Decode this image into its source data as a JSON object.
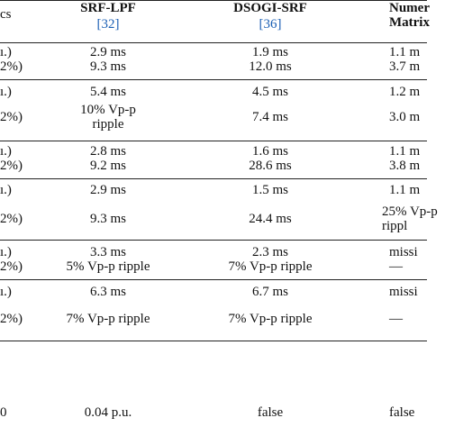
{
  "header": {
    "label": "cs",
    "columns": [
      {
        "title": "SRF-LPF",
        "ref": "[32]"
      },
      {
        "title": "DSOGI-SRF",
        "ref": "[36]"
      },
      {
        "title": "Numer",
        "subtitle": "Matrix"
      }
    ]
  },
  "table": {
    "rows": [
      [
        "ı.)",
        "2.9 ms",
        "1.9 ms",
        "1.1 m"
      ],
      [
        "2%)",
        "9.3 ms",
        "12.0 ms",
        "3.7 m"
      ],
      [
        "ı.)",
        "5.4 ms",
        "4.5 ms",
        "1.2 m"
      ],
      [
        "2%)",
        "10% Vp-p ripple",
        "7.4 ms",
        "3.0 m"
      ],
      [
        "ı.)",
        "2.8 ms",
        "1.6 ms",
        "1.1 m"
      ],
      [
        "2%)",
        "9.2 ms",
        "28.6 ms",
        "3.8 m"
      ],
      [
        "ı.)",
        "2.9 ms",
        "1.5 ms",
        "1.1 m"
      ],
      [
        "2%)",
        "9.3 ms",
        "24.4 ms",
        "25% Vp-p rippl"
      ],
      [
        "ı.)",
        "3.3 ms",
        "2.3 ms",
        "missi"
      ],
      [
        "2%)",
        "5% Vp-p ripple",
        "7% Vp-p ripple",
        "—"
      ],
      [
        "ı.)",
        "6.3 ms",
        "6.7 ms",
        "missi"
      ],
      [
        "2%)",
        "7% Vp-p ripple",
        "7% Vp-p ripple",
        "—"
      ],
      [
        "0",
        "0.04 p.u.",
        "false",
        "false"
      ]
    ]
  }
}
